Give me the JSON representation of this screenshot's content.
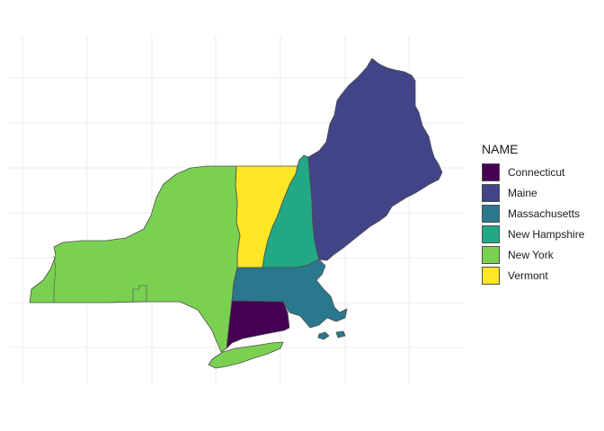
{
  "legend": {
    "title": "NAME",
    "items": [
      {
        "label": "Connecticut",
        "color": "#440154"
      },
      {
        "label": "Maine",
        "color": "#414487"
      },
      {
        "label": "Massachusetts",
        "color": "#2a788e"
      },
      {
        "label": "New Hampshire",
        "color": "#22a884"
      },
      {
        "label": "New York",
        "color": "#7ad151"
      },
      {
        "label": "Vermont",
        "color": "#fde725"
      }
    ]
  },
  "colors": {
    "background": "#ffffff",
    "grid": "#ebebeb",
    "border": "#4d4d4d"
  }
}
